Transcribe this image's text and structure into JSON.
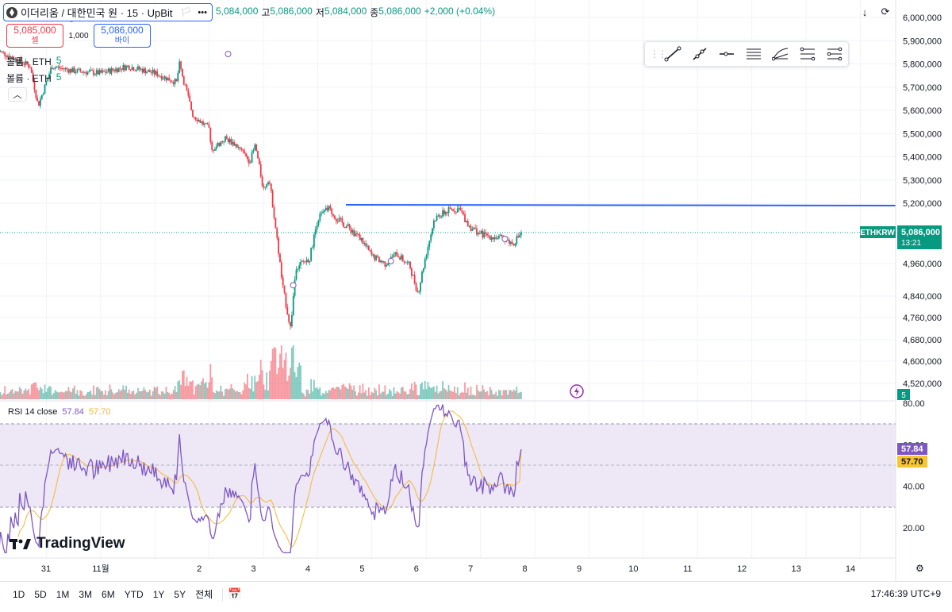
{
  "header": {
    "symbol": "이더리움 / 대한민국 원 · 15 · UpBit",
    "ohlc": {
      "open_value": "5,084,000",
      "high_label": "고",
      "high_value": "5,086,000",
      "low_label": "저",
      "low_value": "5,084,000",
      "close_label": "종",
      "close_value": "5,086,000",
      "change": "+2,000 (+0.04%)"
    }
  },
  "trade": {
    "sell_price": "5,085,000",
    "sell_label": "셀",
    "quantity": "1,000",
    "buy_price": "5,086,000",
    "buy_label": "바이"
  },
  "indicators": [
    {
      "label": "볼륨 · ETH",
      "value": "5"
    },
    {
      "label": "볼륨 · ETH",
      "value": "5"
    }
  ],
  "price_axis": {
    "ticks": [
      {
        "v": 6000000,
        "label": "6,000,000"
      },
      {
        "v": 5900000,
        "label": "5,900,000"
      },
      {
        "v": 5800000,
        "label": "5,800,000"
      },
      {
        "v": 5700000,
        "label": "5,700,000"
      },
      {
        "v": 5600000,
        "label": "5,600,000"
      },
      {
        "v": 5500000,
        "label": "5,500,000"
      },
      {
        "v": 5400000,
        "label": "5,400,000"
      },
      {
        "v": 5300000,
        "label": "5,300,000"
      },
      {
        "v": 5200000,
        "label": "5,200,000"
      },
      {
        "v": 4960000,
        "label": "4,960,000"
      },
      {
        "v": 4840000,
        "label": "4,840,000"
      },
      {
        "v": 4760000,
        "label": "4,760,000"
      },
      {
        "v": 4680000,
        "label": "4,680,000"
      },
      {
        "v": 4600000,
        "label": "4,600,000"
      },
      {
        "v": 4520000,
        "label": "4,520,000"
      }
    ],
    "last_price": "5,086,000",
    "countdown": "13:21",
    "symbol_tag": "ETHKRW",
    "volume_tag": "5"
  },
  "rsi": {
    "label": "RSI 14 close",
    "value": "57.84",
    "ma_value": "57.70",
    "ticks": [
      "80.00",
      "60.00",
      "40.00",
      "20.00"
    ],
    "upper_band": 70,
    "lower_band": 30
  },
  "time_axis": [
    "31",
    "11월",
    "2",
    "3",
    "4",
    "5",
    "6",
    "7",
    "8",
    "9",
    "10",
    "11",
    "12",
    "13",
    "14"
  ],
  "bottom": {
    "ranges": [
      "1D",
      "5D",
      "1M",
      "3M",
      "6M",
      "YTD",
      "1Y",
      "5Y",
      "전체"
    ],
    "clock": "17:46:39 UTC+9"
  },
  "brand": "TradingView",
  "colors": {
    "up": "#089981",
    "down": "#f23645",
    "rsi": "#7e57c2",
    "rsi_ma": "#f7b731",
    "trendline": "#2962ff",
    "price_tag": "#089981",
    "band_fill": "#ede7f6"
  },
  "chart_data": {
    "type": "candlestick",
    "symbol": "ETHKRW",
    "timeframe": "15",
    "ylim": [
      4480000,
      6020000
    ],
    "horizontal_line": 5195000,
    "last_close": 5086000,
    "path": [
      [
        0.0,
        5870000
      ],
      [
        0.35,
        5830000
      ],
      [
        0.7,
        5790000
      ],
      [
        0.85,
        5620000
      ],
      [
        1.1,
        5790000
      ],
      [
        1.5,
        5770000
      ],
      [
        2.0,
        5760000
      ],
      [
        2.5,
        5790000
      ],
      [
        3.0,
        5760000
      ],
      [
        3.4,
        5720000
      ],
      [
        3.45,
        5800000
      ],
      [
        3.7,
        5580000
      ],
      [
        4.0,
        5520000
      ],
      [
        4.05,
        5430000
      ],
      [
        4.3,
        5480000
      ],
      [
        4.5,
        5450000
      ],
      [
        4.75,
        5380000
      ],
      [
        4.85,
        5450000
      ],
      [
        5.0,
        5260000
      ],
      [
        5.1,
        5310000
      ],
      [
        5.2,
        5150000
      ],
      [
        5.35,
        4880000
      ],
      [
        5.5,
        4720000
      ],
      [
        5.6,
        4950000
      ],
      [
        5.85,
        4980000
      ],
      [
        6.0,
        5140000
      ],
      [
        6.2,
        5180000
      ],
      [
        6.35,
        5140000
      ],
      [
        6.6,
        5100000
      ],
      [
        6.8,
        5060000
      ],
      [
        7.0,
        4990000
      ],
      [
        7.25,
        4960000
      ],
      [
        7.45,
        5000000
      ],
      [
        7.7,
        4950000
      ],
      [
        7.85,
        4850000
      ],
      [
        8.0,
        5000000
      ],
      [
        8.15,
        5140000
      ],
      [
        8.4,
        5170000
      ],
      [
        8.6,
        5180000
      ],
      [
        8.8,
        5110000
      ],
      [
        9.0,
        5080000
      ],
      [
        9.2,
        5070000
      ],
      [
        9.45,
        5060000
      ],
      [
        9.6,
        5040000
      ],
      [
        9.75,
        5086000
      ]
    ],
    "rsi_ylim": [
      8,
      84
    ],
    "rsi_last": 57.84,
    "rsi_ma_last": 57.7
  }
}
